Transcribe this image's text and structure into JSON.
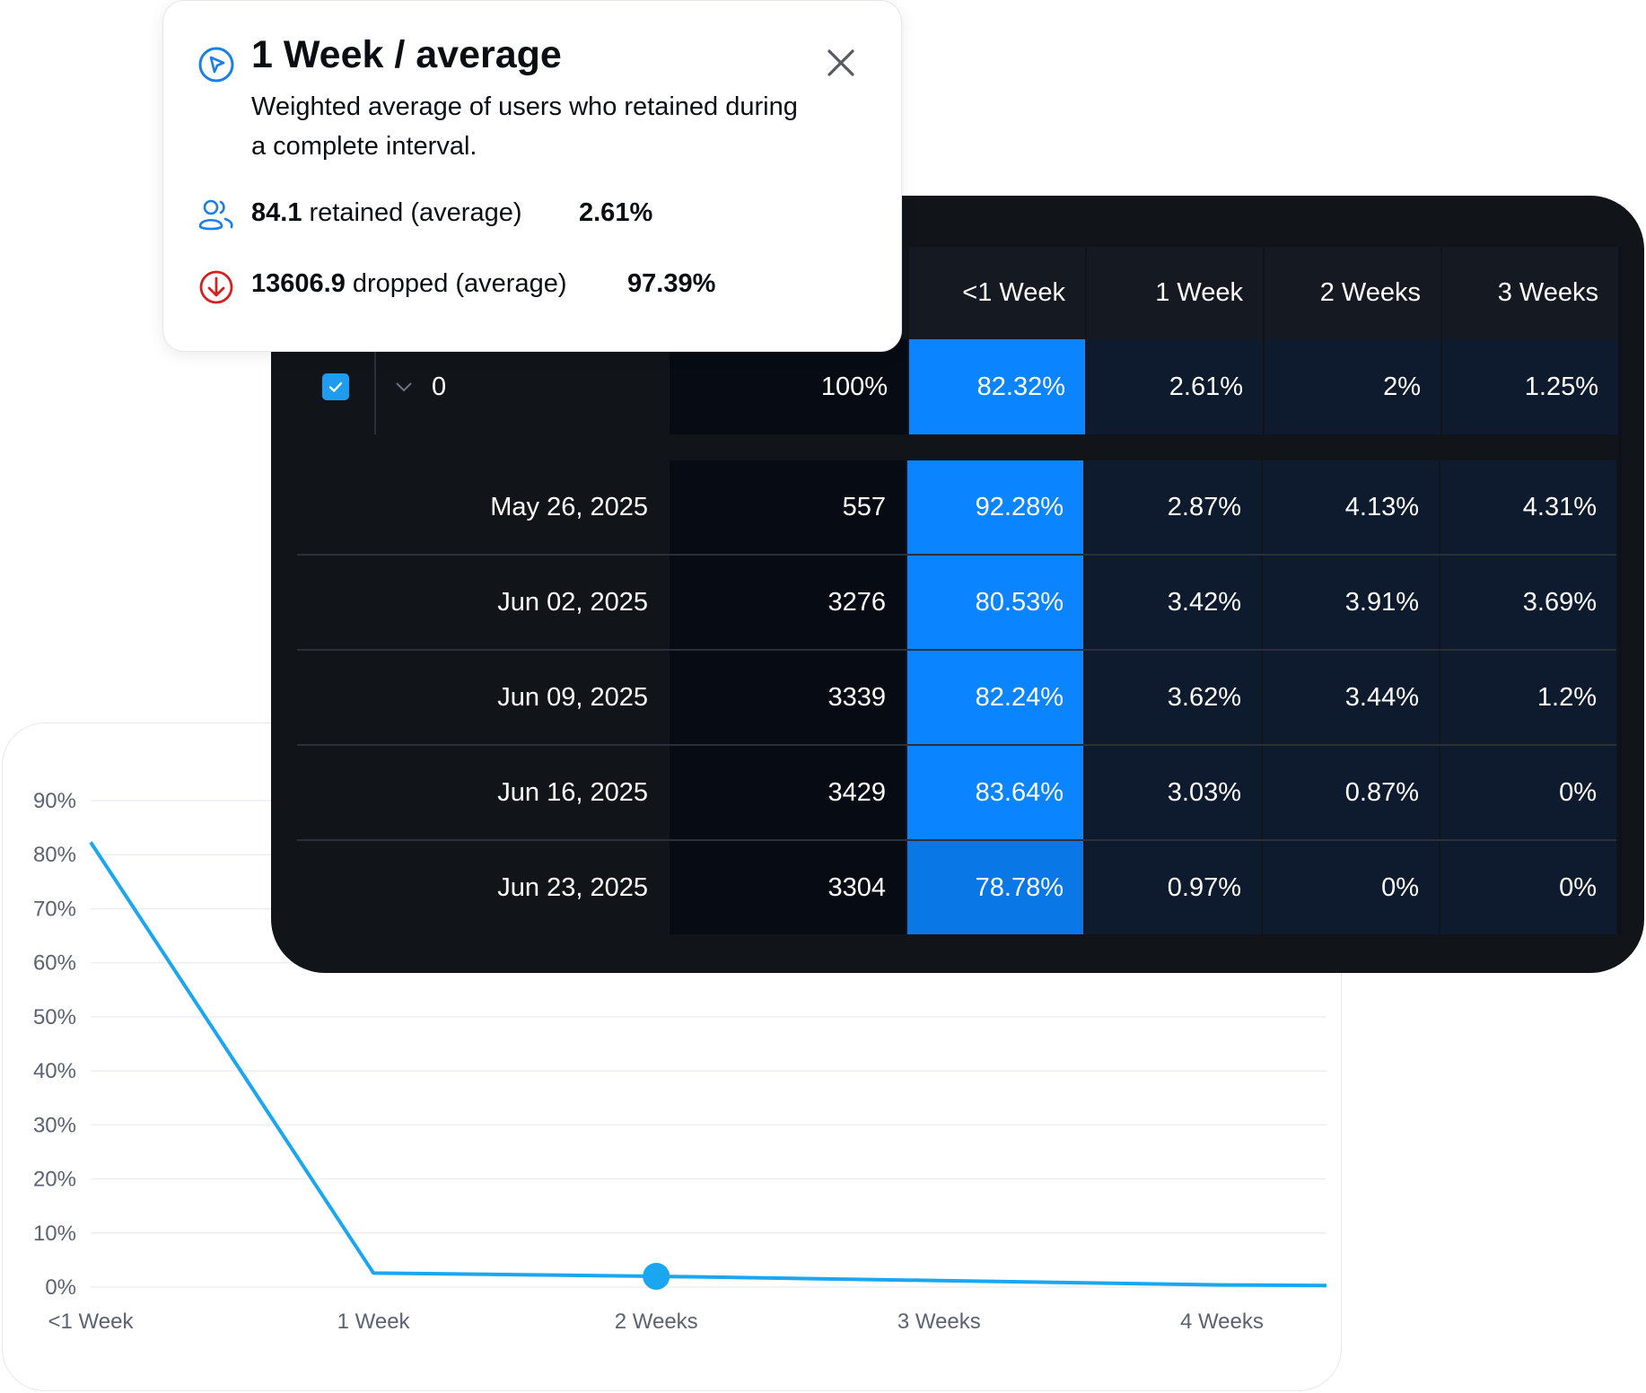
{
  "tooltip": {
    "title": "1 Week / average",
    "description": "Weighted average of users who retained during a complete interval.",
    "retained_value": "84.1",
    "retained_label": "retained (average)",
    "retained_pct": "2.61%",
    "dropped_value": "13606.9",
    "dropped_label": "dropped (average)",
    "dropped_pct": "97.39%",
    "icons": {
      "title": "cursor-pointer-icon",
      "retained": "users-icon",
      "dropped": "arrow-down-circle-icon",
      "close": "close-icon"
    },
    "colors": {
      "accent": "#1a7fe8",
      "dropped": "#d42020"
    }
  },
  "table": {
    "headers": [
      "<1 Week",
      "1 Week",
      "2 Weeks",
      "3 Weeks"
    ],
    "summary": {
      "checked": true,
      "group_label": "0",
      "count": "100%",
      "values": [
        "82.32%",
        "2.61%",
        "2%",
        "1.25%"
      ]
    },
    "rows": [
      {
        "date": "May 26, 2025",
        "count": "557",
        "values": [
          "92.28%",
          "2.87%",
          "4.13%",
          "4.31%"
        ]
      },
      {
        "date": "Jun 02, 2025",
        "count": "3276",
        "values": [
          "80.53%",
          "3.42%",
          "3.91%",
          "3.69%"
        ]
      },
      {
        "date": "Jun 09, 2025",
        "count": "3339",
        "values": [
          "82.24%",
          "3.62%",
          "3.44%",
          "1.2%"
        ]
      },
      {
        "date": "Jun 16, 2025",
        "count": "3429",
        "values": [
          "83.64%",
          "3.03%",
          "0.87%",
          "0%"
        ]
      },
      {
        "date": "Jun 23, 2025",
        "count": "3304",
        "values": [
          "78.78%",
          "0.97%",
          "0%",
          "0%"
        ]
      }
    ],
    "colors": {
      "highlight": "#0a84ff",
      "cell": "#0e1a2e",
      "panel": "#111418"
    }
  },
  "chart_data": {
    "type": "line",
    "categories": [
      "<1 Week",
      "1 Week",
      "2 Weeks",
      "3 Weeks",
      "4 Weeks"
    ],
    "x_extent": [
      0,
      4.37
    ],
    "series": [
      {
        "x": [
          0,
          1,
          2,
          3,
          4,
          4.37
        ],
        "values": [
          82.3,
          2.6,
          2.0,
          1.2,
          0.4,
          0.3
        ]
      }
    ],
    "highlight_point": {
      "x": 2,
      "value": 2.0
    },
    "yticks": [
      "0%",
      "10%",
      "20%",
      "30%",
      "40%",
      "50%",
      "60%",
      "70%",
      "80%",
      "90%"
    ],
    "ylim": [
      0,
      90
    ],
    "grid": true,
    "color": "#1aa6f0"
  }
}
